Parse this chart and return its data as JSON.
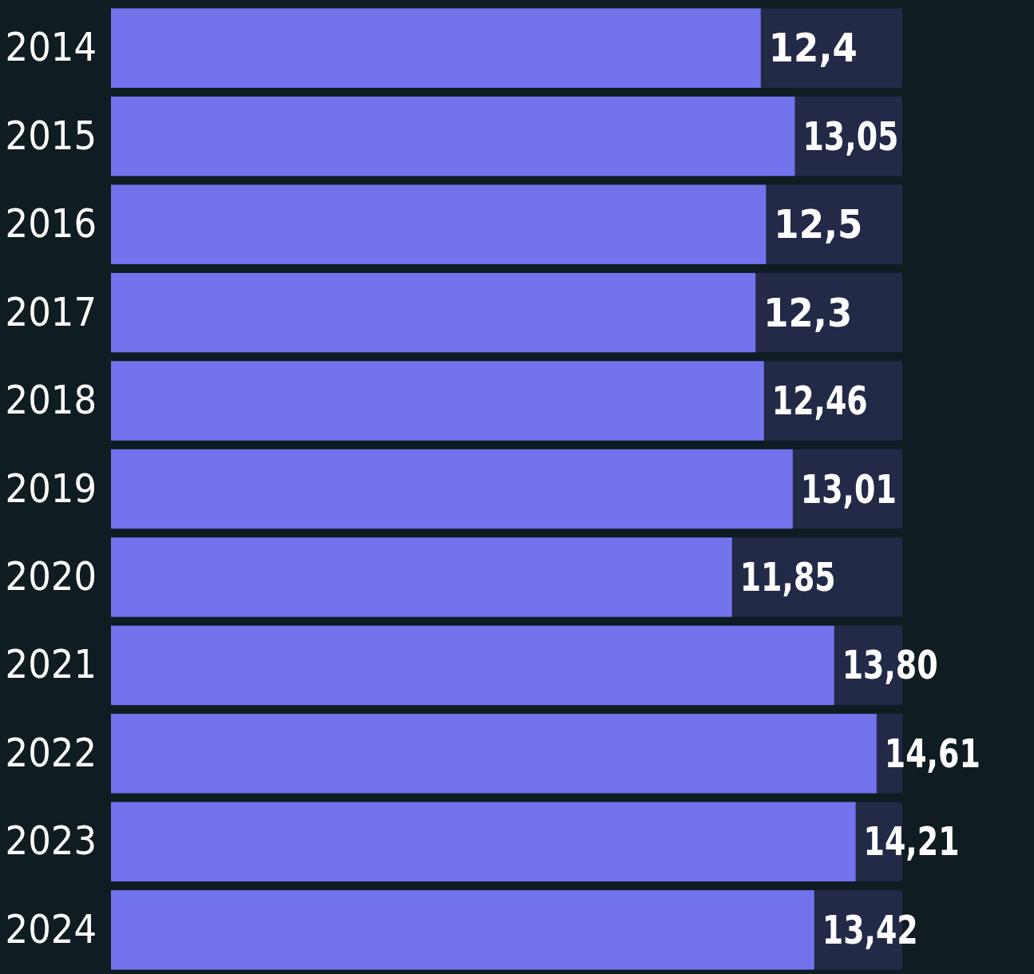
{
  "chart_data": {
    "type": "bar",
    "orientation": "horizontal",
    "categories": [
      "2014",
      "2015",
      "2016",
      "2017",
      "2018",
      "2019",
      "2020",
      "2021",
      "2022",
      "2023",
      "2024"
    ],
    "values": [
      12.4,
      13.05,
      12.5,
      12.3,
      12.46,
      13.01,
      11.85,
      13.8,
      14.61,
      14.21,
      13.42
    ],
    "value_labels": [
      "12,4",
      "13,05",
      "12,5",
      "12,3",
      "12,46",
      "13,01",
      "11,85",
      "13,80",
      "14,61",
      "14,21",
      "13,42"
    ],
    "color": "#7373ee",
    "xlim": [
      0,
      15.1
    ],
    "tick_labels": "y"
  }
}
